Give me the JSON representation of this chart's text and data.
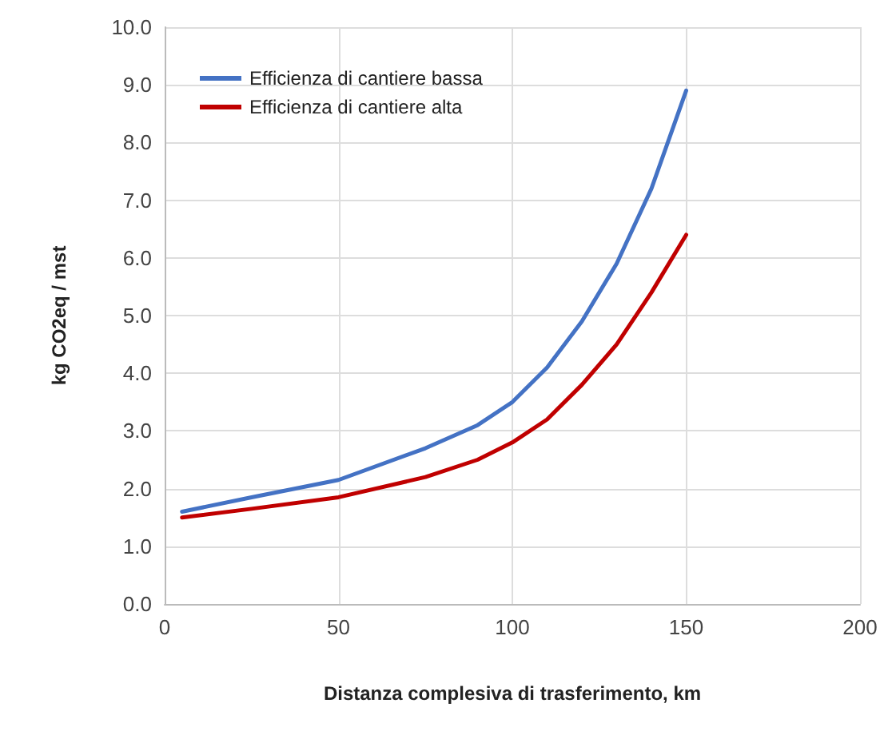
{
  "chart_data": {
    "type": "line",
    "xlabel": "Distanza complesiva di trasferimento, km",
    "ylabel": "kg CO2eq / mst",
    "series": [
      {
        "name": "Efficienza di cantiere bassa",
        "color": "#4472c4",
        "x": [
          5,
          25,
          50,
          75,
          90,
          100,
          110,
          120,
          130,
          140,
          150
        ],
        "values": [
          1.6,
          1.85,
          2.15,
          2.7,
          3.1,
          3.5,
          4.1,
          4.9,
          5.9,
          7.2,
          8.9
        ]
      },
      {
        "name": "Efficienza di cantiere alta",
        "color": "#c00000",
        "x": [
          5,
          25,
          50,
          75,
          90,
          100,
          110,
          120,
          130,
          140,
          150
        ],
        "values": [
          1.5,
          1.65,
          1.85,
          2.2,
          2.5,
          2.8,
          3.2,
          3.8,
          4.5,
          5.4,
          6.4
        ]
      }
    ],
    "xlim": [
      0,
      200
    ],
    "xticks": [
      0,
      50,
      100,
      150,
      200
    ],
    "ylim": [
      0,
      10
    ],
    "yticks": [
      {
        "value": 0,
        "label": "0.0"
      },
      {
        "value": 1,
        "label": "1.0"
      },
      {
        "value": 2,
        "label": "2.0"
      },
      {
        "value": 3,
        "label": "3.0"
      },
      {
        "value": 4,
        "label": "4.0"
      },
      {
        "value": 5,
        "label": "5.0"
      },
      {
        "value": 6,
        "label": "6.0"
      },
      {
        "value": 7,
        "label": "7.0"
      },
      {
        "value": 8,
        "label": "8.0"
      },
      {
        "value": 9,
        "label": "9.0"
      },
      {
        "value": 10,
        "label": "10.0"
      }
    ],
    "grid": true,
    "legend": "top left",
    "marker": "none",
    "line_style": "solid"
  }
}
